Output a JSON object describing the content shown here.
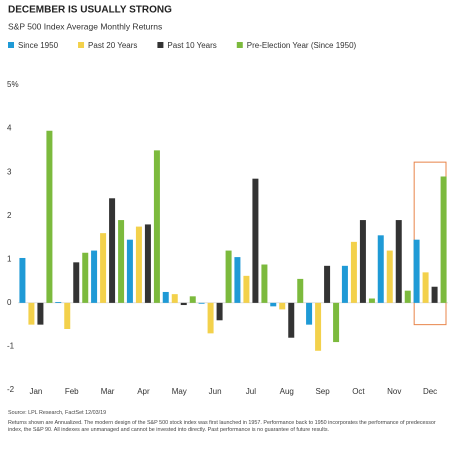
{
  "chart_data": {
    "type": "bar",
    "title": "DECEMBER IS USUALLY STRONG",
    "subtitle": "S&P 500 Index Average Monthly Returns",
    "categories": [
      "Jan",
      "Feb",
      "Mar",
      "Apr",
      "May",
      "Jun",
      "Jul",
      "Aug",
      "Sep",
      "Oct",
      "Nov",
      "Dec"
    ],
    "series": [
      {
        "name": "Since 1950",
        "color": "#1f9ad6",
        "values": [
          1.03,
          0.02,
          1.2,
          1.45,
          0.25,
          -0.02,
          1.05,
          -0.08,
          -0.5,
          0.85,
          1.55,
          1.45
        ]
      },
      {
        "name": "Past 20 Years",
        "color": "#f3d14b",
        "values": [
          -0.5,
          -0.6,
          1.6,
          1.75,
          0.2,
          -0.7,
          0.62,
          -0.15,
          -1.1,
          1.4,
          1.2,
          0.7
        ]
      },
      {
        "name": "Past 10 Years",
        "color": "#333333",
        "values": [
          -0.5,
          0.93,
          2.4,
          1.8,
          -0.05,
          -0.4,
          2.85,
          -0.8,
          0.85,
          1.9,
          1.9,
          0.37
        ]
      },
      {
        "name": "Pre-Election Year (Since 1950)",
        "color": "#7cba3d",
        "values": [
          3.95,
          1.15,
          1.9,
          3.5,
          0.15,
          1.2,
          0.88,
          0.55,
          -0.9,
          0.1,
          0.28,
          2.9
        ]
      }
    ],
    "ylim": [
      -2,
      5
    ],
    "yticks": [
      -2,
      -1,
      0,
      1,
      2,
      3,
      4,
      {
        "value": 5,
        "label": "5%"
      }
    ],
    "grid": false,
    "highlight_color": "#e8844a",
    "notes": [
      "Source: LPL Research, FactSet 12/03/19",
      "Returns shown are Annualized. The modern design of the S&P 500 stock index was first launched in 1957. Performance back to 1950 incorporates the performance of predecessor index, the S&P 90. All indexes are unmanaged and cannot be invested into directly. Past performance is no guarantee of future results."
    ]
  }
}
